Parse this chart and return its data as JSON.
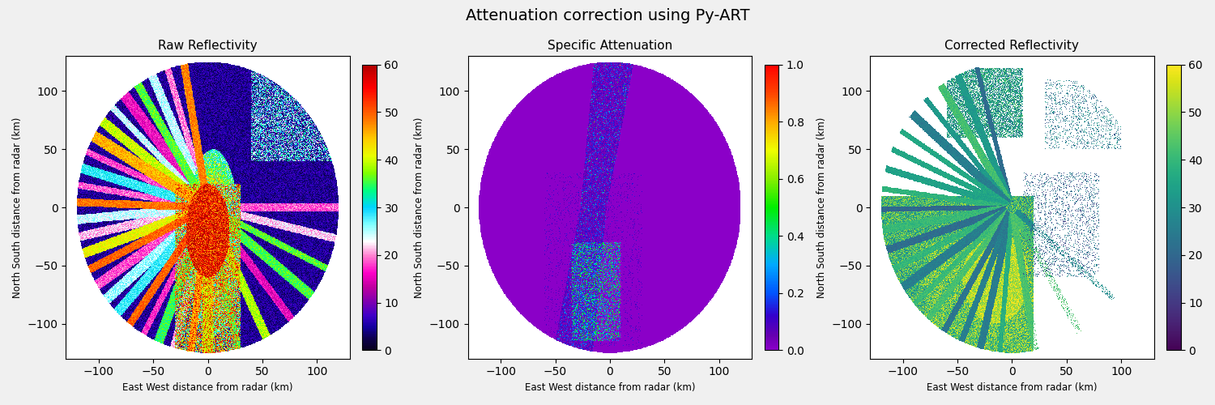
{
  "title": "Attenuation correction using Py-ART",
  "title_fontsize": 14,
  "subplot_titles": [
    "Raw Reflectivity",
    "Specific Attenuation",
    "Corrected Reflectivity"
  ],
  "xlabel": "East West distance from radar (km)",
  "ylabel": "North South distance from radar (km)",
  "xlim": [
    -130,
    130
  ],
  "ylim": [
    -130,
    130
  ],
  "cbar1_ticks": [
    0,
    10,
    20,
    30,
    40,
    50,
    60
  ],
  "cbar2_ticks": [
    0.0,
    0.2,
    0.4,
    0.6,
    0.8,
    1.0
  ],
  "cbar3_ticks": [
    0,
    10,
    20,
    30,
    40,
    50,
    60
  ],
  "vmin1": 0,
  "vmax1": 60,
  "vmin2": 0.0,
  "vmax2": 1.0,
  "vmin3": 0,
  "vmax3": 60,
  "figsize": [
    15,
    5
  ],
  "dpi": 100,
  "ellipse_a": 120,
  "ellipse_b": 125,
  "grid_ticks": [
    -100,
    -50,
    0,
    50,
    100
  ],
  "bg_fig": "#f0f0f0",
  "bg_plot1": "white",
  "bg_plot2": "white",
  "bg_plot3": "white"
}
